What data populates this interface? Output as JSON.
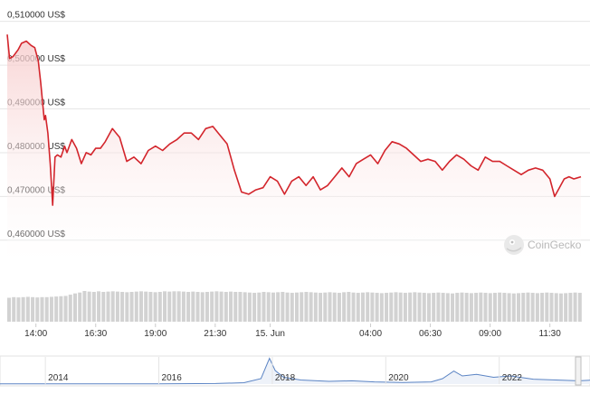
{
  "chart_data": [
    {
      "type": "area",
      "title": "",
      "xlabel": "",
      "ylabel": "",
      "ylim": [
        0.455,
        0.512
      ],
      "y_ticks": [
        0.46,
        0.47,
        0.48,
        0.49,
        0.5,
        0.51
      ],
      "y_tick_labels": [
        "0,460000 US$",
        "0,470000 US$",
        "0,480000 US$",
        "0,490000 US$",
        "0,500000 US$",
        "0,510000 US$"
      ],
      "x_tick_labels": [
        "14:00",
        "16:30",
        "19:00",
        "21:30",
        "15. Jun",
        "04:00",
        "06:30",
        "09:00",
        "11:30"
      ],
      "x_hours": [
        0,
        24
      ],
      "x_tick_hours": [
        1.2,
        3.7,
        6.2,
        8.7,
        11.0,
        15.2,
        17.7,
        20.2,
        22.7
      ],
      "grid": true,
      "line_color": "#d3252c",
      "fill_color": "#fbe3e3",
      "series": [
        {
          "x": [
            0.0,
            0.1,
            0.25,
            0.45,
            0.6,
            0.8,
            1.0,
            1.15,
            1.3,
            1.4,
            1.55,
            1.6,
            1.7,
            1.8,
            1.9,
            2.0,
            2.1,
            2.25,
            2.4,
            2.5,
            2.7,
            2.9,
            3.1,
            3.3,
            3.5,
            3.7,
            3.9,
            4.1,
            4.4,
            4.7,
            5.0,
            5.3,
            5.6,
            5.9,
            6.2,
            6.5,
            6.8,
            7.1,
            7.4,
            7.7,
            8.0,
            8.3,
            8.6,
            8.9,
            9.2,
            9.5,
            9.8,
            10.1,
            10.4,
            10.7,
            11.0,
            11.3,
            11.6,
            11.9,
            12.2,
            12.5,
            12.8,
            13.1,
            13.4,
            13.7,
            14.0,
            14.3,
            14.6,
            14.9,
            15.2,
            15.5,
            15.8,
            16.1,
            16.4,
            16.7,
            17.0,
            17.3,
            17.6,
            17.9,
            18.2,
            18.5,
            18.8,
            19.1,
            19.4,
            19.7,
            20.0,
            20.3,
            20.6,
            20.9,
            21.2,
            21.5,
            21.8,
            22.1,
            22.4,
            22.7,
            22.9,
            23.1,
            23.3,
            23.5,
            23.7,
            24.0
          ],
          "y": [
            0.507,
            0.5015,
            0.502,
            0.5035,
            0.505,
            0.5055,
            0.5045,
            0.504,
            0.501,
            0.496,
            0.4875,
            0.4885,
            0.4845,
            0.4775,
            0.468,
            0.479,
            0.4795,
            0.479,
            0.4815,
            0.48,
            0.483,
            0.481,
            0.4775,
            0.48,
            0.4795,
            0.481,
            0.481,
            0.4825,
            0.4855,
            0.4835,
            0.478,
            0.479,
            0.4775,
            0.4805,
            0.4815,
            0.4805,
            0.482,
            0.483,
            0.4845,
            0.4845,
            0.483,
            0.4855,
            0.486,
            0.484,
            0.482,
            0.476,
            0.471,
            0.4705,
            0.4715,
            0.472,
            0.4745,
            0.4735,
            0.4705,
            0.4735,
            0.4745,
            0.4725,
            0.4745,
            0.4715,
            0.4725,
            0.4745,
            0.4765,
            0.4745,
            0.4775,
            0.4785,
            0.4795,
            0.4775,
            0.4805,
            0.4825,
            0.482,
            0.481,
            0.4795,
            0.478,
            0.4785,
            0.478,
            0.476,
            0.478,
            0.4795,
            0.4785,
            0.477,
            0.476,
            0.479,
            0.478,
            0.478,
            0.477,
            0.476,
            0.475,
            0.476,
            0.4765,
            0.476,
            0.474,
            0.47,
            0.472,
            0.474,
            0.4745,
            0.474,
            0.4745
          ]
        }
      ]
    },
    {
      "type": "bar",
      "title": "",
      "xlabel": "",
      "ylabel": "",
      "ylim": [
        0,
        1
      ],
      "values": [
        0.78,
        0.8,
        0.79,
        0.8,
        0.81,
        0.8,
        0.79,
        0.8,
        0.8,
        0.81,
        0.82,
        0.83,
        0.84,
        0.88,
        0.92,
        0.95,
        1.0,
        0.98,
        0.97,
        0.99,
        0.97,
        0.98,
        0.99,
        0.98,
        0.97,
        0.96,
        0.97,
        0.98,
        0.99,
        0.98,
        0.97,
        0.96,
        0.97,
        0.99,
        0.98,
        0.99,
        0.99,
        0.98,
        0.97,
        0.98,
        0.97,
        0.96,
        0.97,
        0.98,
        0.99,
        0.98,
        0.97,
        0.98,
        0.97,
        0.97,
        0.96,
        0.95,
        0.94,
        0.95,
        0.97,
        0.96,
        0.95,
        0.96,
        0.97,
        0.95,
        0.94,
        0.95,
        0.96,
        0.97,
        0.96,
        0.95,
        0.94,
        0.95,
        0.96,
        0.95,
        0.94,
        0.96,
        0.97,
        0.95,
        0.94,
        0.95,
        0.96,
        0.95,
        0.94,
        0.93,
        0.94,
        0.95,
        0.96,
        0.95,
        0.94,
        0.95,
        0.96,
        0.95,
        0.94,
        0.93,
        0.94,
        0.95,
        0.94,
        0.93,
        0.92,
        0.94,
        0.95,
        0.94,
        0.93,
        0.94,
        0.95,
        0.94,
        0.93,
        0.94,
        0.95,
        0.94,
        0.93,
        0.92,
        0.93,
        0.94,
        0.95,
        0.94,
        0.93,
        0.94,
        0.95,
        0.94,
        0.93,
        0.92,
        0.93,
        0.94,
        0.95,
        0.94
      ],
      "bar_color": "#d2d2d2"
    },
    {
      "type": "area",
      "title": "",
      "xlabel": "",
      "ylabel": "",
      "x_tick_labels": [
        "2014",
        "2016",
        "2018",
        "2020",
        "2022"
      ],
      "x_tick_years": [
        2014,
        2016,
        2018,
        2020,
        2022
      ],
      "xlim": [
        2013.2,
        2023.6
      ],
      "ylim": [
        0,
        1
      ],
      "line_color": "#5b84c4",
      "fill_color": "#eef2f9",
      "series": [
        {
          "x": [
            2013.2,
            2014.0,
            2015.0,
            2016.0,
            2017.0,
            2017.5,
            2017.8,
            2017.95,
            2018.05,
            2018.2,
            2018.5,
            2019.0,
            2019.4,
            2019.8,
            2020.3,
            2020.8,
            2021.0,
            2021.2,
            2021.35,
            2021.6,
            2021.9,
            2022.2,
            2022.6,
            2023.0,
            2023.4,
            2023.6
          ],
          "y": [
            0.01,
            0.01,
            0.01,
            0.01,
            0.02,
            0.05,
            0.2,
            0.95,
            0.5,
            0.25,
            0.15,
            0.1,
            0.12,
            0.08,
            0.06,
            0.08,
            0.2,
            0.48,
            0.3,
            0.36,
            0.25,
            0.3,
            0.18,
            0.15,
            0.12,
            0.14
          ]
        }
      ]
    }
  ],
  "watermark": {
    "text": "CoinGecko"
  }
}
